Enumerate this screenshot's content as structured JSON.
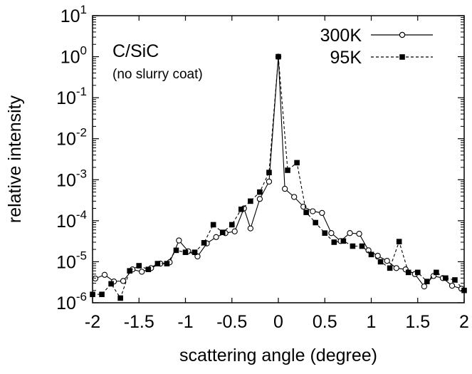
{
  "chart_data": {
    "type": "line",
    "xlabel": "scattering angle (degree)",
    "ylabel": "relative intensity",
    "xlim": [
      -2,
      2
    ],
    "ylim": [
      1e-06,
      10
    ],
    "y_scale": "log",
    "grid": false,
    "legend_position": "top-right",
    "x_ticks": [
      -2,
      -1.5,
      -1,
      -0.5,
      0,
      0.5,
      1,
      1.5,
      2
    ],
    "x_tick_labels": [
      "-2",
      "-1.5",
      "-1",
      "-0.5",
      "0",
      "0.5",
      "1",
      "1.5",
      "2"
    ],
    "y_ticks": [
      1e-06,
      1e-05,
      0.0001,
      0.001,
      0.01,
      0.1,
      1,
      10
    ],
    "y_tick_labels": [
      {
        "base": "10",
        "exp": "-6"
      },
      {
        "base": "10",
        "exp": "-5"
      },
      {
        "base": "10",
        "exp": "-4"
      },
      {
        "base": "10",
        "exp": "-3"
      },
      {
        "base": "10",
        "exp": "-2"
      },
      {
        "base": "10",
        "exp": "-1"
      },
      {
        "base": "10",
        "exp": "0"
      },
      {
        "base": "10",
        "exp": "1"
      }
    ],
    "annotations": {
      "title": "C/SiC",
      "subtitle": "(no slurry coat)"
    },
    "series": [
      {
        "name": "300K",
        "marker": "open-circle",
        "line_style": "solid",
        "color": "#000000",
        "points": [
          [
            -1.97,
            3.9e-06
          ],
          [
            -1.87,
            4.8e-06
          ],
          [
            -1.77,
            3.3e-06
          ],
          [
            -1.67,
            3.4e-06
          ],
          [
            -1.57,
            6.5e-06
          ],
          [
            -1.47,
            5.7e-06
          ],
          [
            -1.37,
            7e-06
          ],
          [
            -1.27,
            9e-06
          ],
          [
            -1.17,
            9.7e-06
          ],
          [
            -1.07,
            3.3e-05
          ],
          [
            -0.97,
            1.8e-05
          ],
          [
            -0.87,
            1.35e-05
          ],
          [
            -0.77,
            2.8e-05
          ],
          [
            -0.67,
            4e-05
          ],
          [
            -0.57,
            5e-05
          ],
          [
            -0.47,
            5.5e-05
          ],
          [
            -0.37,
            0.0002
          ],
          [
            -0.3,
            6.5e-05
          ],
          [
            -0.2,
            0.00034
          ],
          [
            -0.1,
            0.0009
          ],
          [
            0.0,
            1.0
          ],
          [
            0.07,
            0.0006
          ],
          [
            0.17,
            0.00038
          ],
          [
            0.27,
            0.00022
          ],
          [
            0.37,
            0.00017
          ],
          [
            0.47,
            0.000155
          ],
          [
            0.57,
            5e-05
          ],
          [
            0.67,
            3.2e-05
          ],
          [
            0.77,
            5e-05
          ],
          [
            0.87,
            4.8e-05
          ],
          [
            0.97,
            1.9e-05
          ],
          [
            1.07,
            1.4e-05
          ],
          [
            1.17,
            1.05e-05
          ],
          [
            1.27,
            7e-06
          ],
          [
            1.37,
            6.5e-06
          ],
          [
            1.47,
            5e-06
          ],
          [
            1.57,
            2.5e-06
          ],
          [
            1.67,
            4.5e-06
          ],
          [
            1.77,
            4e-06
          ],
          [
            1.87,
            2.6e-06
          ],
          [
            1.97,
            2.2e-06
          ]
        ]
      },
      {
        "name": "95K",
        "marker": "filled-square",
        "line_style": "dashed",
        "color": "#000000",
        "points": [
          [
            -2.0,
            1.6e-06
          ],
          [
            -1.9,
            1.6e-06
          ],
          [
            -1.8,
            2.9e-06
          ],
          [
            -1.7,
            1.3e-06
          ],
          [
            -1.6,
            6e-06
          ],
          [
            -1.5,
            8e-06
          ],
          [
            -1.4,
            6.5e-06
          ],
          [
            -1.3,
            9e-06
          ],
          [
            -1.2,
            9e-06
          ],
          [
            -1.1,
            1.9e-05
          ],
          [
            -1.0,
            1.7e-05
          ],
          [
            -0.9,
            1.7e-05
          ],
          [
            -0.8,
            2.9e-05
          ],
          [
            -0.7,
            8e-05
          ],
          [
            -0.6,
            5.2e-05
          ],
          [
            -0.5,
            8e-05
          ],
          [
            -0.4,
            0.00019
          ],
          [
            -0.3,
            0.0003
          ],
          [
            -0.2,
            0.0005
          ],
          [
            -0.1,
            0.0015
          ],
          [
            0.0,
            1.0
          ],
          [
            0.1,
            0.0017
          ],
          [
            0.2,
            0.0026
          ],
          [
            0.3,
            0.00016
          ],
          [
            0.4,
            9e-05
          ],
          [
            0.5,
            5e-05
          ],
          [
            0.6,
            3e-05
          ],
          [
            0.7,
            3.2e-05
          ],
          [
            0.8,
            2.4e-05
          ],
          [
            0.9,
            2.4e-05
          ],
          [
            1.0,
            1.5e-05
          ],
          [
            1.1,
            1e-05
          ],
          [
            1.2,
            7e-06
          ],
          [
            1.3,
            3.1e-05
          ],
          [
            1.4,
            5.5e-06
          ],
          [
            1.5,
            5.5e-06
          ],
          [
            1.6,
            3.3e-06
          ],
          [
            1.7,
            5.5e-06
          ],
          [
            1.8,
            4e-06
          ],
          [
            1.9,
            3.6e-06
          ],
          [
            2.0,
            2e-06
          ]
        ]
      }
    ]
  }
}
